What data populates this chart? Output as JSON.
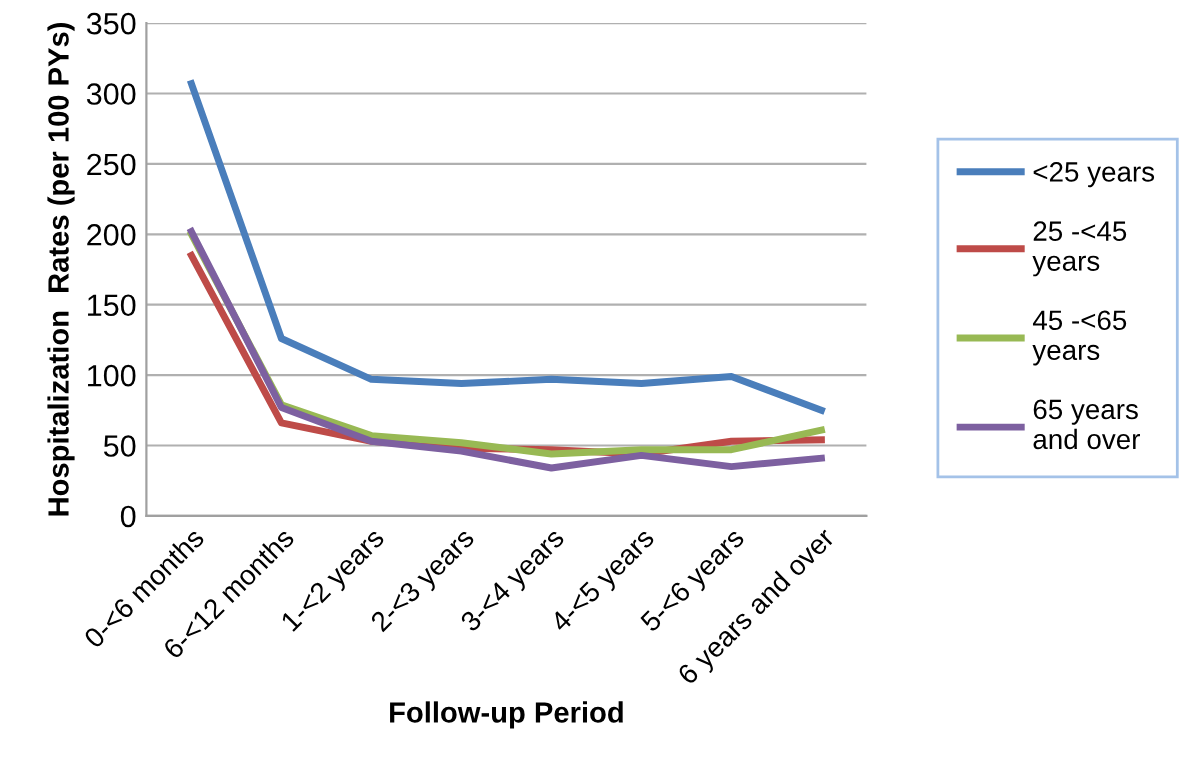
{
  "chart_data": {
    "type": "line",
    "xlabel": "Follow-up Period",
    "ylabel": "Hospitalization  Rates (per 100 PYs)",
    "categories": [
      "0-<6 months",
      "6-<12 months",
      "1-<2 years",
      "2-<3 years",
      "3-<4 years",
      "4-<5 years",
      "5-<6 years",
      "6 years and over"
    ],
    "series": [
      {
        "name": "<25 years",
        "color": "#4a7ebb",
        "values": [
          307,
          126,
          97,
          94,
          97,
          94,
          99,
          75
        ]
      },
      {
        "name": "25 -<45\nyears",
        "color": "#be4b48",
        "values": [
          185,
          66,
          53,
          48,
          47,
          44,
          53,
          54
        ]
      },
      {
        "name": "45 -<65\nyears",
        "color": "#98b954",
        "values": [
          200,
          79,
          57,
          52,
          44,
          47,
          47,
          61
        ]
      },
      {
        "name": "65 years\nand over",
        "color": "#7d60a0",
        "values": [
          202,
          77,
          53,
          46,
          34,
          43,
          35,
          41
        ]
      }
    ],
    "ylim": [
      0,
      350
    ],
    "yticks": [
      0,
      50,
      100,
      150,
      200,
      250,
      300,
      350
    ],
    "grid": "y",
    "legend": "right",
    "marker": "none",
    "line_style": "solid"
  }
}
